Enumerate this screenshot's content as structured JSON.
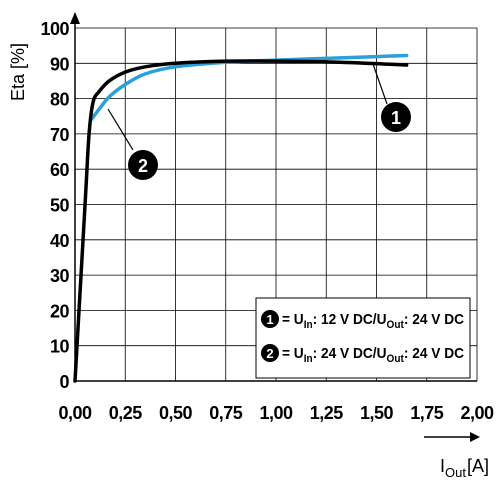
{
  "chart_data": {
    "type": "line",
    "ylabel": "Eta [%]",
    "xlabel": {
      "main": "I",
      "sub": "Out",
      "unit": "[A]"
    },
    "xlim": [
      0,
      2.0
    ],
    "ylim": [
      0,
      100
    ],
    "grid": true,
    "x_ticks": [
      0,
      0.25,
      0.5,
      0.75,
      1.0,
      1.25,
      1.5,
      1.75,
      2.0
    ],
    "x_tick_labels": [
      "0,00",
      "0,25",
      "0,50",
      "0,75",
      "1,00",
      "1,25",
      "1,50",
      "1,75",
      "2,00"
    ],
    "y_ticks": [
      0,
      10,
      20,
      30,
      40,
      50,
      60,
      70,
      80,
      90,
      100
    ],
    "y_tick_labels": [
      "0",
      "10",
      "20",
      "30",
      "40",
      "50",
      "60",
      "70",
      "80",
      "90",
      "100"
    ],
    "series": [
      {
        "marker": "1",
        "color": "#000000",
        "points": [
          [
            0,
            0
          ],
          [
            0.05,
            50
          ],
          [
            0.07,
            70
          ],
          [
            0.09,
            79
          ],
          [
            0.12,
            82
          ],
          [
            0.17,
            85
          ],
          [
            0.25,
            87.5
          ],
          [
            0.35,
            89
          ],
          [
            0.5,
            90
          ],
          [
            0.75,
            90.6
          ],
          [
            1.0,
            90.6
          ],
          [
            1.25,
            90.4
          ],
          [
            1.5,
            89.9
          ],
          [
            1.65,
            89.5
          ]
        ]
      },
      {
        "marker": "2",
        "color": "#2a9fd8",
        "points": [
          [
            0.08,
            74
          ],
          [
            0.12,
            77
          ],
          [
            0.17,
            80.5
          ],
          [
            0.25,
            84
          ],
          [
            0.35,
            87
          ],
          [
            0.5,
            89
          ],
          [
            0.75,
            90.3
          ],
          [
            1.0,
            90.9
          ],
          [
            1.25,
            91.4
          ],
          [
            1.5,
            91.9
          ],
          [
            1.65,
            92.2
          ]
        ]
      }
    ],
    "legend": {
      "placement": "bottom-right",
      "entries": [
        {
          "num": "1",
          "eq": "= U",
          "in_sub": "In",
          "mid": ": 12 V DC/U",
          "out_sub": "Out",
          "end": ": 24 V DC"
        },
        {
          "num": "2",
          "eq": "= U",
          "in_sub": "In",
          "mid": ": 24 V DC/U",
          "out_sub": "Out",
          "end": ": 24 V DC"
        }
      ]
    }
  }
}
